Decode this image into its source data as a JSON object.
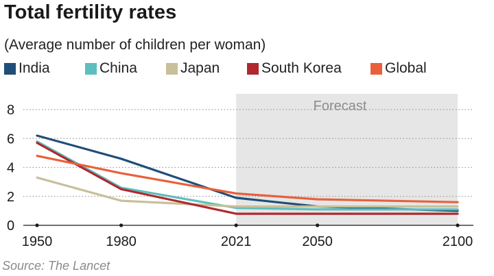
{
  "title": "Total fertility rates",
  "subtitle": "(Average number of children per woman)",
  "source": "Source: The Lancet",
  "chart_data": {
    "type": "line",
    "x": [
      1950,
      1980,
      2021,
      2050,
      2100
    ],
    "x_ticks": [
      "1950",
      "1980",
      "2021",
      "2050",
      "2100"
    ],
    "y_ticks": [
      "0",
      "2",
      "4",
      "6",
      "8"
    ],
    "ylim": [
      0,
      8
    ],
    "grid": true,
    "legend_position": "top",
    "forecast": {
      "label": "Forecast",
      "from": 2021,
      "to": 2100,
      "color": "#e6e6e6"
    },
    "series": [
      {
        "name": "India",
        "color": "#1f4e79",
        "values": [
          6.2,
          4.6,
          1.9,
          1.3,
          1.0
        ]
      },
      {
        "name": "China",
        "color": "#5cbfbe",
        "values": [
          5.8,
          2.6,
          1.2,
          1.1,
          1.1
        ]
      },
      {
        "name": "Japan",
        "color": "#c8c09a",
        "values": [
          3.3,
          1.7,
          1.3,
          1.3,
          1.3
        ]
      },
      {
        "name": "South Korea",
        "color": "#b0292e",
        "values": [
          5.7,
          2.5,
          0.8,
          0.8,
          0.8
        ]
      },
      {
        "name": "Global",
        "color": "#e8603c",
        "values": [
          4.8,
          3.6,
          2.2,
          1.8,
          1.6
        ]
      }
    ]
  }
}
